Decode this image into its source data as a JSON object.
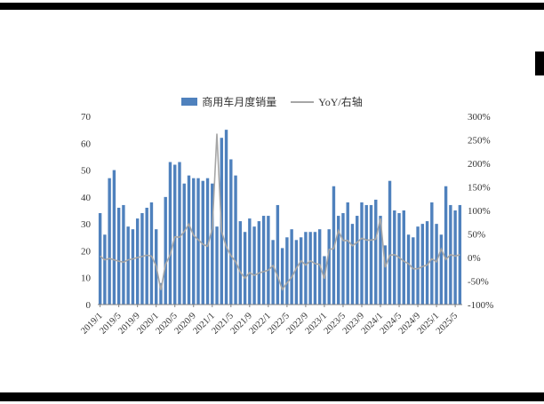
{
  "chart_data": {
    "type": "bar+line combo",
    "title": "",
    "legend": {
      "bars": "商用车月度销量",
      "line": "YoY/右轴"
    },
    "legend_position": "top-center",
    "grid": false,
    "x_label_every": 4,
    "months": [
      "2019/1",
      "2019/2",
      "2019/3",
      "2019/4",
      "2019/5",
      "2019/6",
      "2019/7",
      "2019/8",
      "2019/9",
      "2019/10",
      "2019/11",
      "2019/12",
      "2020/1",
      "2020/2",
      "2020/3",
      "2020/4",
      "2020/5",
      "2020/6",
      "2020/7",
      "2020/8",
      "2020/9",
      "2020/10",
      "2020/11",
      "2020/12",
      "2021/1",
      "2021/2",
      "2021/3",
      "2021/4",
      "2021/5",
      "2021/6",
      "2021/7",
      "2021/8",
      "2021/9",
      "2021/10",
      "2021/11",
      "2021/12",
      "2022/1",
      "2022/2",
      "2022/3",
      "2022/4",
      "2022/5",
      "2022/6",
      "2022/7",
      "2022/8",
      "2022/9",
      "2022/10",
      "2022/11",
      "2022/12",
      "2023/1",
      "2023/2",
      "2023/3",
      "2023/4",
      "2023/5",
      "2023/6",
      "2023/7",
      "2023/8",
      "2023/9",
      "2023/10",
      "2023/11",
      "2023/12",
      "2024/1",
      "2024/2",
      "2024/3",
      "2024/4",
      "2024/5",
      "2024/6",
      "2024/7",
      "2024/8",
      "2024/9",
      "2024/10",
      "2024/11",
      "2024/12",
      "2025/1",
      "2025/2",
      "2025/3",
      "2025/4",
      "2025/5",
      "2025/6"
    ],
    "series": [
      {
        "name": "商用车月度销量",
        "type": "bar",
        "axis": "left",
        "values": [
          34,
          26,
          47,
          50,
          36,
          37,
          29,
          28,
          32,
          34,
          36,
          38,
          28,
          8,
          40,
          53,
          52,
          53,
          45,
          48,
          47,
          47,
          46,
          47,
          45,
          29,
          62,
          65,
          54,
          48,
          31,
          27,
          32,
          29,
          31,
          33,
          33,
          24,
          37,
          21,
          25,
          28,
          24,
          25,
          27,
          27,
          27,
          28,
          18,
          28,
          44,
          33,
          34,
          38,
          30,
          33,
          38,
          37,
          37,
          39,
          33,
          22,
          46,
          35,
          34,
          35,
          26,
          25,
          29,
          30,
          31,
          38,
          30,
          26,
          44,
          37,
          35,
          37
        ]
      },
      {
        "name": "YoY/右轴",
        "type": "line",
        "axis": "right",
        "values_pct": [
          3,
          -5,
          -2,
          -5,
          -8,
          -10,
          -5,
          -3,
          0,
          2,
          5,
          3,
          -18,
          -69,
          -15,
          6,
          44,
          43,
          55,
          71,
          47,
          38,
          28,
          24,
          61,
          263,
          55,
          23,
          4,
          -9,
          -31,
          -44,
          -32,
          -38,
          -33,
          -30,
          -27,
          -17,
          -40,
          -68,
          -54,
          -42,
          -23,
          -7,
          -16,
          -7,
          -13,
          -15,
          -45,
          17,
          19,
          57,
          36,
          36,
          25,
          32,
          41,
          37,
          37,
          39,
          83,
          -21,
          5,
          6,
          0,
          -8,
          -13,
          -24,
          -24,
          -19,
          -16,
          -3,
          -9,
          18,
          -4,
          6,
          3,
          6
        ]
      }
    ],
    "left_axis": {
      "min": 0,
      "max": 70,
      "ticks": [
        0,
        10,
        20,
        30,
        40,
        50,
        60,
        70
      ]
    },
    "right_axis": {
      "min": -100,
      "max": 300,
      "ticks": [
        {
          "v": 300,
          "label": "300%"
        },
        {
          "v": 250,
          "label": "250%"
        },
        {
          "v": 200,
          "label": "200%"
        },
        {
          "v": 150,
          "label": "150%"
        },
        {
          "v": 100,
          "label": "100%"
        },
        {
          "v": 50,
          "label": "50%"
        },
        {
          "v": 0,
          "label": "0%"
        },
        {
          "v": -50,
          "label": "-50%"
        },
        {
          "v": -100,
          "label": "-100%"
        }
      ]
    },
    "colors": {
      "bar": "#4F81BD",
      "line": "#A6A6A6",
      "axis": "#808080",
      "text": "#333333"
    }
  }
}
